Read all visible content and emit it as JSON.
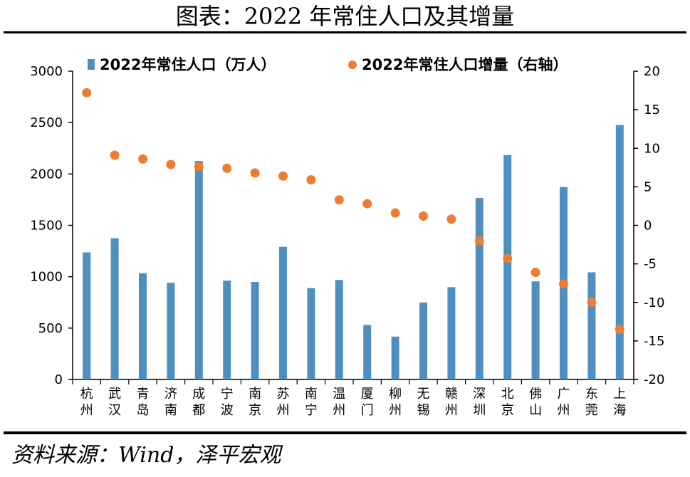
{
  "title": "图表：2022 年常住人口及其增量",
  "source": "资料来源：Wind，泽平宏观",
  "chart_data": {
    "type": "bar",
    "categories": [
      "杭州",
      "武汉",
      "青岛",
      "济南",
      "成都",
      "宁波",
      "南京",
      "苏州",
      "南宁",
      "温州",
      "厦门",
      "柳州",
      "无锡",
      "赣州",
      "深圳",
      "北京",
      "佛山",
      "广州",
      "东莞",
      "上海"
    ],
    "series": [
      {
        "name": "2022年常住人口（万人）",
        "type": "bar",
        "axis": "left",
        "color": "#4f8fc0",
        "values": [
          1237,
          1374,
          1034,
          941,
          2127,
          962,
          949,
          1291,
          889,
          968,
          530,
          417,
          749,
          898,
          1766,
          2184,
          955,
          1873,
          1043,
          2476
        ]
      },
      {
        "name": "2022年常住人口增量（右轴）",
        "type": "scatter",
        "axis": "right",
        "color": "#ed7d31",
        "values": [
          17.2,
          9.1,
          8.6,
          7.9,
          7.6,
          7.4,
          6.8,
          6.4,
          5.9,
          3.3,
          2.8,
          1.6,
          1.2,
          0.8,
          -2.0,
          -4.3,
          -6.1,
          -7.6,
          -10.0,
          -13.5
        ]
      }
    ],
    "y_left": {
      "min": 0,
      "max": 3000,
      "ticks": [
        0,
        500,
        1000,
        1500,
        2000,
        2500,
        3000
      ]
    },
    "y_right": {
      "min": -20,
      "max": 20,
      "ticks": [
        -20,
        -15,
        -10,
        -5,
        0,
        5,
        10,
        15,
        20
      ]
    },
    "legend_position": "top",
    "grid": false
  }
}
